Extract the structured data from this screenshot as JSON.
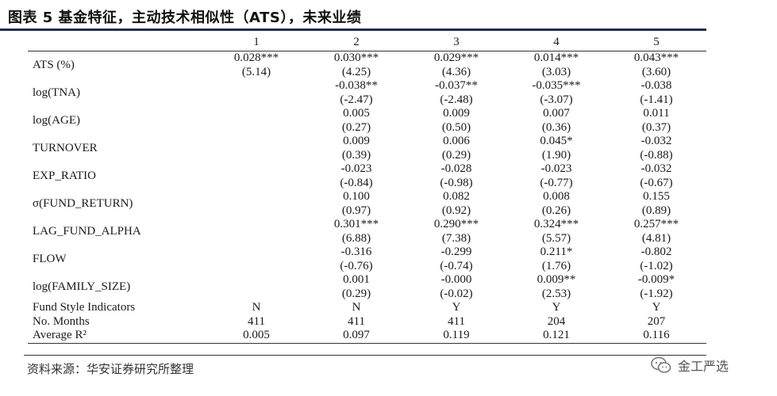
{
  "title": "图表 5 基金特征，主动技术相似性（ATS），未来业绩",
  "columns": [
    "1",
    "2",
    "3",
    "4",
    "5"
  ],
  "rows": [
    {
      "var": "ATS (%)",
      "coef": [
        "0.028***",
        "0.030***",
        "0.029***",
        "0.014***",
        "0.043***"
      ],
      "t": [
        "(5.14)",
        "(4.25)",
        "(4.36)",
        "(3.03)",
        "(3.60)"
      ]
    },
    {
      "var": "log(TNA)",
      "coef": [
        "",
        "-0.038**",
        "-0.037**",
        "-0.035***",
        "-0.038"
      ],
      "t": [
        "",
        "(-2.47)",
        "(-2.48)",
        "(-3.07)",
        "(-1.41)"
      ]
    },
    {
      "var": "log(AGE)",
      "coef": [
        "",
        "0.005",
        "0.009",
        "0.007",
        "0.011"
      ],
      "t": [
        "",
        "(0.27)",
        "(0.50)",
        "(0.36)",
        "(0.37)"
      ]
    },
    {
      "var": "TURNOVER",
      "coef": [
        "",
        "0.009",
        "0.006",
        "0.045*",
        "-0.032"
      ],
      "t": [
        "",
        "(0.39)",
        "(0.29)",
        "(1.90)",
        "(-0.88)"
      ]
    },
    {
      "var": "EXP_RATIO",
      "coef": [
        "",
        "-0.023",
        "-0.028",
        "-0.023",
        "-0.032"
      ],
      "t": [
        "",
        "(-0.84)",
        "(-0.98)",
        "(-0.77)",
        "(-0.67)"
      ]
    },
    {
      "var": "σ(FUND_RETURN)",
      "coef": [
        "",
        "0.100",
        "0.082",
        "0.008",
        "0.155"
      ],
      "t": [
        "",
        "(0.97)",
        "(0.92)",
        "(0.26)",
        "(0.89)"
      ]
    },
    {
      "var": "LAG_FUND_ALPHA",
      "coef": [
        "",
        "0.301***",
        "0.290***",
        "0.324***",
        "0.257***"
      ],
      "t": [
        "",
        "(6.88)",
        "(7.38)",
        "(5.57)",
        "(4.81)"
      ]
    },
    {
      "var": "FLOW",
      "coef": [
        "",
        "-0.316",
        "-0.299",
        "0.211*",
        "-0.802"
      ],
      "t": [
        "",
        "(-0.76)",
        "(-0.74)",
        "(1.76)",
        "(-1.02)"
      ]
    },
    {
      "var": "log(FAMILY_SIZE)",
      "coef": [
        "",
        "0.001",
        "-0.000",
        "0.009**",
        "-0.009*"
      ],
      "t": [
        "",
        "(0.29)",
        "(-0.02)",
        "(2.53)",
        "(-1.92)"
      ]
    }
  ],
  "footer_rows": [
    {
      "label": "Fund Style Indicators",
      "values": [
        "N",
        "N",
        "Y",
        "Y",
        "Y"
      ]
    },
    {
      "label": "No. Months",
      "values": [
        "411",
        "411",
        "411",
        "204",
        "207"
      ]
    },
    {
      "label": "Average R²",
      "values": [
        "0.005",
        "0.097",
        "0.119",
        "0.121",
        "0.116"
      ]
    }
  ],
  "source": "资料来源：华安证券研究所整理",
  "brand": "金工严选",
  "colors": {
    "title_bar": "#1f2f4f",
    "text": "#1a1a1a"
  }
}
